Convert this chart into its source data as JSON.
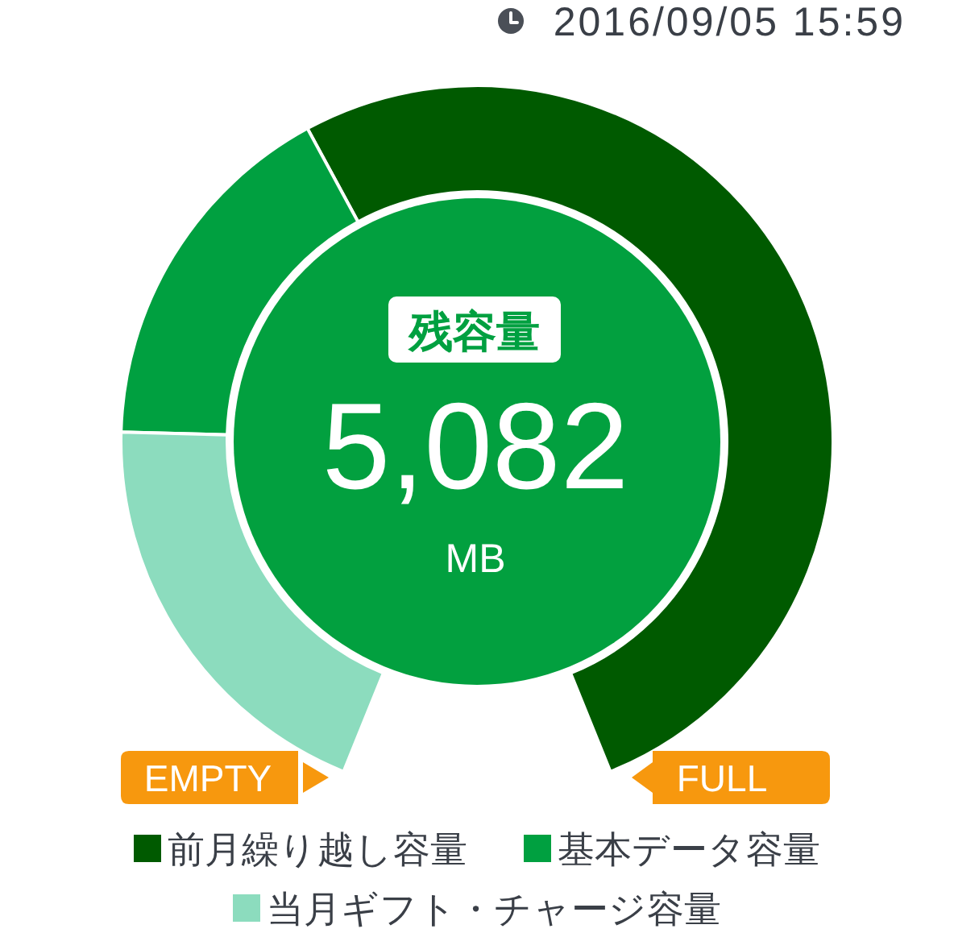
{
  "chart_data": {
    "type": "donut",
    "categories": [
      "前月繰り越し容量",
      "基本データ容量",
      "当月ギフト・チャージ容量"
    ],
    "values": [
      59,
      19,
      22
    ],
    "colors": [
      "#005a00",
      "#00a040",
      "#8cdcbe"
    ],
    "legend": "bottom",
    "annotations": [
      "2016/09/05 15:59",
      "残容量",
      "5,082",
      "MB",
      "EMPTY",
      "FULL"
    ]
  }
}
